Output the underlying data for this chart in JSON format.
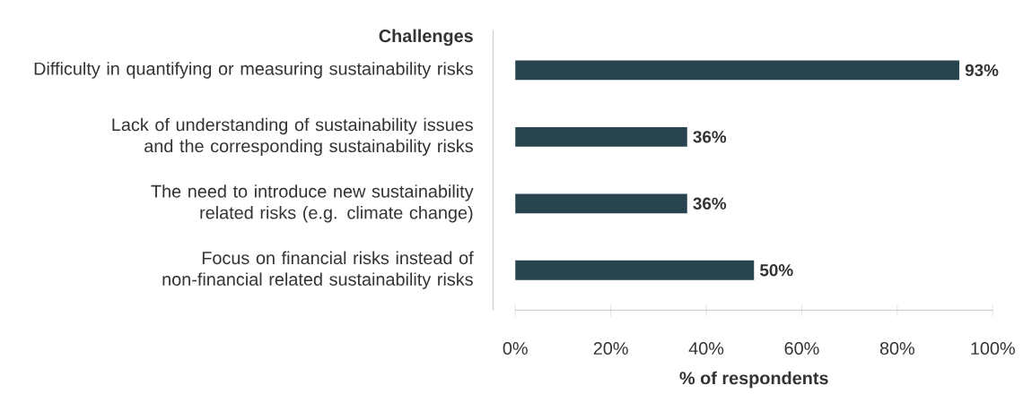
{
  "chart_data": {
    "type": "bar",
    "orientation": "horizontal",
    "title": "Challenges",
    "xlabel": "% of respondents",
    "categories": [
      "Difficulty in quantifying or measuring sustainability risks",
      "Lack of understanding of sustainability issues and the corresponding sustainability risks",
      "The need to introduce new sustainability related risks (e.g. climate change)",
      "Focus on financial risks instead of non-financial related sustainability risks"
    ],
    "values": [
      93,
      36,
      36,
      50
    ],
    "value_labels": [
      "93%",
      "36%",
      "36%",
      "50%"
    ],
    "color": "#27444f",
    "xlim": [
      0,
      100
    ],
    "xticks": [
      {
        "value": 0,
        "label": "0%"
      },
      {
        "value": 20,
        "label": "20%"
      },
      {
        "value": 40,
        "label": "40%"
      },
      {
        "value": 60,
        "label": "60%"
      },
      {
        "value": 80,
        "label": "80%"
      },
      {
        "value": 100,
        "label": "100%"
      }
    ]
  }
}
